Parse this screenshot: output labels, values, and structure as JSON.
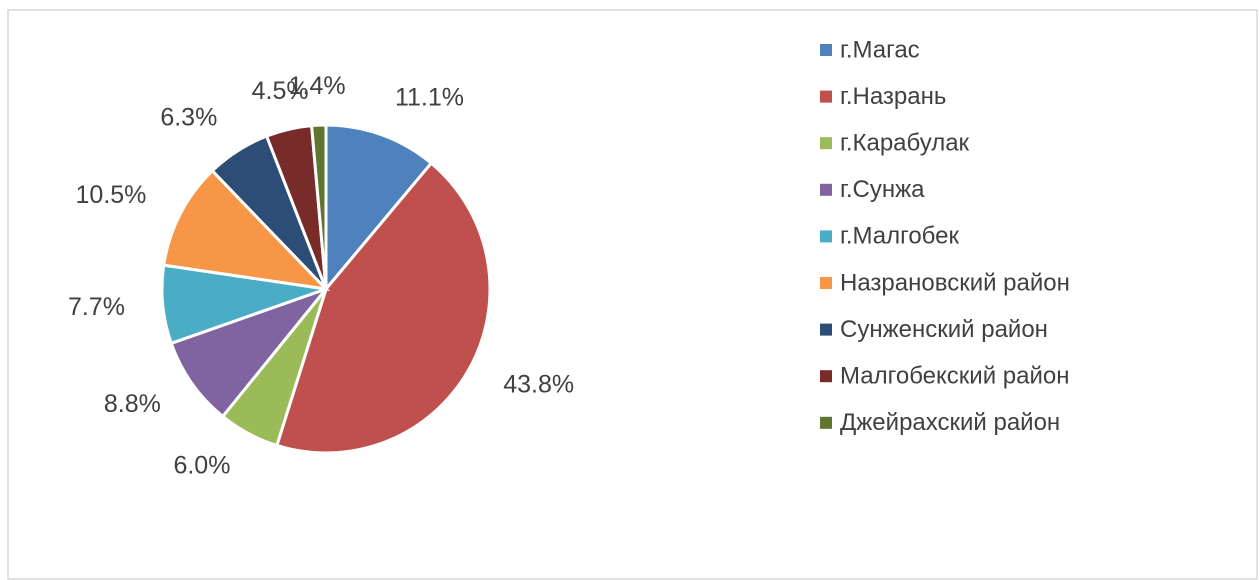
{
  "chart_data": {
    "type": "pie",
    "categories": [
      "г.Магас",
      "г.Назрань",
      "г.Карабулак",
      "г.Сунжа",
      "г.Малгобек",
      "Назрановский район",
      "Сунженский район",
      "Малгобекский район",
      "Джейрахский район"
    ],
    "values": [
      11.1,
      43.8,
      6.0,
      8.8,
      7.7,
      10.5,
      6.3,
      4.5,
      1.4
    ],
    "value_labels": [
      "11.1%",
      "43.8%",
      "6.0%",
      "8.8%",
      "7.7%",
      "10.5%",
      "6.3%",
      "4.5%",
      "1.4%"
    ],
    "colors": [
      "#4f81bd",
      "#c0504d",
      "#9bbb59",
      "#8064a2",
      "#4bacc6",
      "#f79646",
      "#2c4d75",
      "#772c2a",
      "#5f7530"
    ],
    "legend": "right"
  }
}
